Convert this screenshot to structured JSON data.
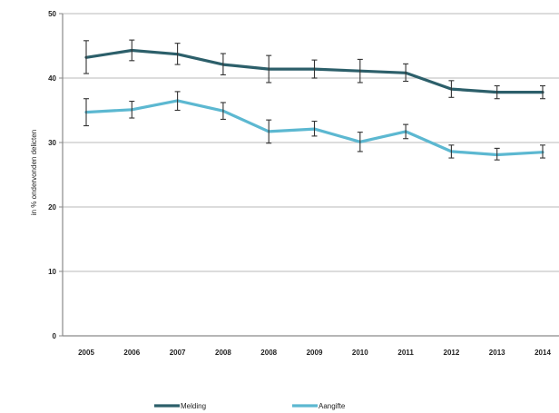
{
  "chart_data": {
    "type": "line",
    "categories": [
      "2005",
      "2006",
      "2007",
      "2008",
      "2008",
      "2009",
      "2010",
      "2011",
      "2012",
      "2013",
      "2014"
    ],
    "ylabel": "in % ondervonden delicten",
    "ylim": [
      0,
      50
    ],
    "yticks": [
      0,
      10,
      20,
      30,
      40,
      50
    ],
    "ytick_labels": [
      "0",
      "10",
      "20",
      "30",
      "40",
      "50"
    ],
    "grid": true,
    "legend_position": "bottom",
    "error_bars": true,
    "series": [
      {
        "name": "Melding",
        "color": "#2c5f6a",
        "values": [
          43.2,
          44.3,
          43.7,
          42.1,
          41.4,
          41.4,
          41.1,
          40.8,
          38.3,
          37.8,
          37.8
        ],
        "error_low": [
          40.7,
          42.7,
          42.1,
          40.5,
          39.3,
          40.0,
          39.3,
          39.5,
          37.0,
          36.8,
          36.8
        ],
        "error_high": [
          45.8,
          45.9,
          45.4,
          43.8,
          43.5,
          42.8,
          42.9,
          42.2,
          39.6,
          38.8,
          38.8
        ]
      },
      {
        "name": "Aangifte",
        "color": "#5cb8d1",
        "values": [
          34.7,
          35.1,
          36.5,
          34.9,
          31.7,
          32.1,
          30.1,
          31.7,
          28.6,
          28.1,
          28.5
        ],
        "error_low": [
          32.6,
          33.8,
          35.0,
          33.6,
          29.9,
          31.0,
          28.6,
          30.6,
          27.6,
          27.3,
          27.6
        ],
        "error_high": [
          36.8,
          36.4,
          37.9,
          36.2,
          33.5,
          33.3,
          31.6,
          32.8,
          29.6,
          29.1,
          29.6
        ]
      }
    ]
  }
}
